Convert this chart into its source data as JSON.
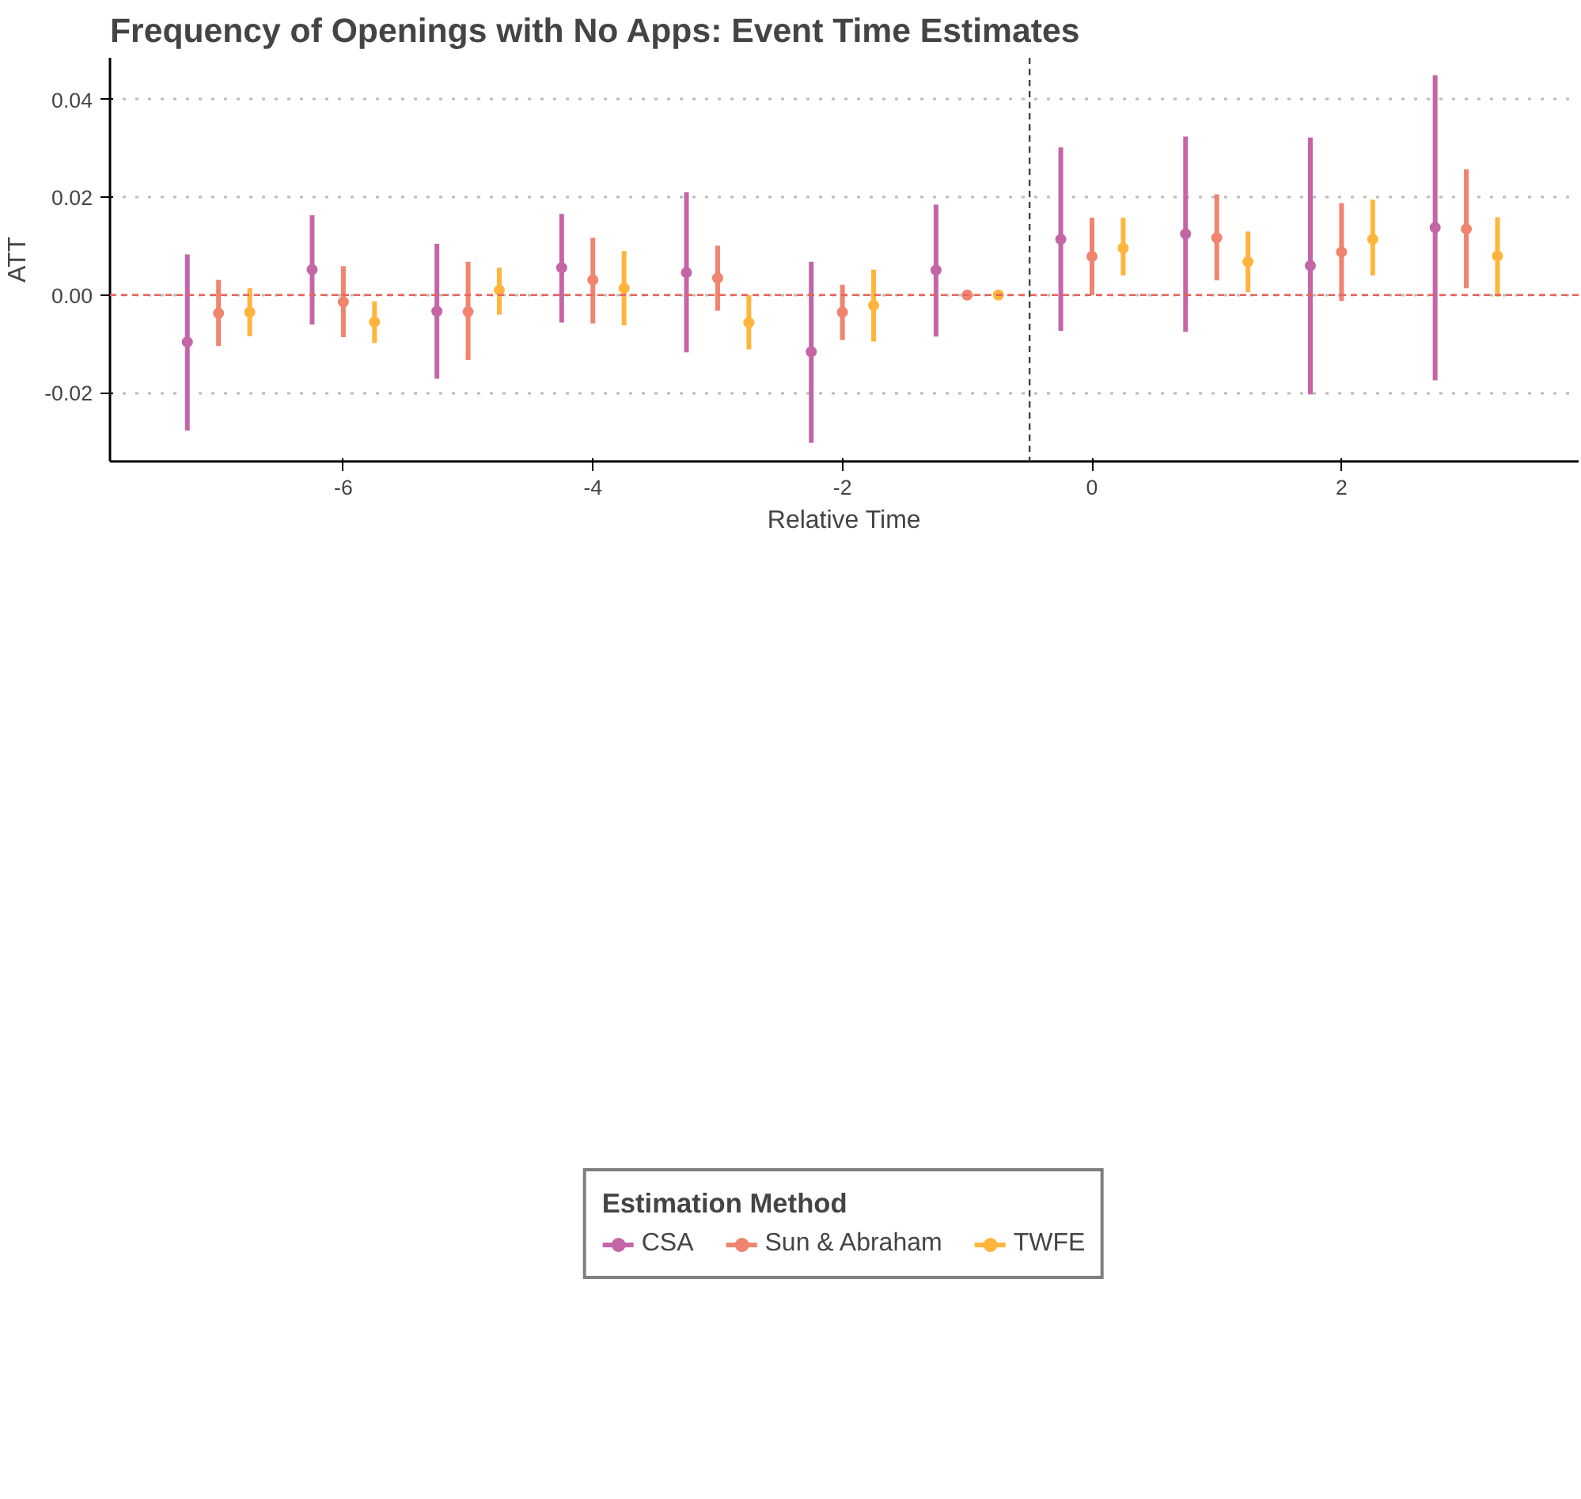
{
  "chart_data": {
    "type": "scatter",
    "title": "Frequency of Openings with No Apps: Event Time Estimates",
    "xlabel": "Relative Time",
    "ylabel": "ATT",
    "legend_title": "Estimation Method",
    "xlim": [
      -7.87,
      3.9
    ],
    "ylim": [
      -0.034,
      0.0485
    ],
    "xticks": [
      -6,
      -4,
      -2,
      0,
      2
    ],
    "yticks": [
      {
        "value": -0.02,
        "label": "-0.02"
      },
      {
        "value": 0,
        "label": "0.00"
      },
      {
        "value": 0.02,
        "label": "0.02"
      },
      {
        "value": 0.04,
        "label": "0.04"
      }
    ],
    "grid": "y",
    "legend": "bottom",
    "marker": "circle",
    "ref_lines": [
      {
        "axis": "y",
        "value": 0,
        "color": "#e8625a",
        "line_style": "dashed"
      },
      {
        "axis": "x",
        "value": -0.5,
        "color": "#444444",
        "line_style": "dashed"
      }
    ],
    "series": [
      {
        "name": "CSA",
        "color": "#c466a6",
        "x": [
          -7.25,
          -6.25,
          -5.25,
          -4.25,
          -3.25,
          -2.25,
          -1.25,
          -0.25,
          0.75,
          1.75,
          2.75
        ],
        "values": [
          -0.0096,
          0.0052,
          -0.0033,
          0.0056,
          0.0046,
          -0.0116,
          0.0051,
          0.0114,
          0.0125,
          0.006,
          0.0138
        ],
        "errors": [
          [
            -0.0277,
            0.0083
          ],
          [
            -0.006,
            0.0163
          ],
          [
            -0.0171,
            0.0105
          ],
          [
            -0.0056,
            0.0166
          ],
          [
            -0.0117,
            0.021
          ],
          [
            -0.0302,
            0.0068
          ],
          [
            -0.0085,
            0.0185
          ],
          [
            -0.0073,
            0.0302
          ],
          [
            -0.0075,
            0.0324
          ],
          [
            -0.0203,
            0.0322
          ],
          [
            -0.0174,
            0.0449
          ]
        ]
      },
      {
        "name": "Sun & Abraham",
        "color": "#f0846f",
        "x": [
          -7,
          -6,
          -5,
          -4,
          -3,
          -2,
          -1,
          0,
          1,
          2,
          3
        ],
        "values": [
          -0.0037,
          -0.0014,
          -0.0034,
          0.0031,
          0.0035,
          -0.0035,
          0.0,
          0.0079,
          0.0117,
          0.0088,
          0.0135
        ],
        "errors": [
          [
            -0.0104,
            0.0031
          ],
          [
            -0.0086,
            0.0059
          ],
          [
            -0.0133,
            0.0068
          ],
          [
            -0.0058,
            0.0117
          ],
          [
            -0.0032,
            0.0101
          ],
          [
            -0.0092,
            0.0021
          ],
          null,
          [
            0.0,
            0.0158
          ],
          [
            0.003,
            0.0206
          ],
          [
            -0.0012,
            0.0188
          ],
          [
            0.0014,
            0.0257
          ]
        ]
      },
      {
        "name": "TWFE",
        "color": "#ffb53c",
        "x": [
          -6.75,
          -5.75,
          -4.75,
          -3.75,
          -2.75,
          -1.75,
          -0.75,
          0.25,
          1.25,
          2.25,
          3.25
        ],
        "values": [
          -0.0035,
          -0.0055,
          0.001,
          0.0014,
          -0.0056,
          -0.0021,
          0.0,
          0.0096,
          0.0068,
          0.0114,
          0.008
        ],
        "errors": [
          [
            -0.0084,
            0.0014
          ],
          [
            -0.0098,
            -0.0013
          ],
          [
            -0.004,
            0.0056
          ],
          [
            -0.0062,
            0.009
          ],
          [
            -0.0111,
            0.0
          ],
          [
            -0.0095,
            0.0052
          ],
          null,
          [
            0.004,
            0.0158
          ],
          [
            0.0006,
            0.013
          ],
          [
            0.004,
            0.0195
          ],
          [
            -0.0003,
            0.0159
          ]
        ]
      }
    ]
  }
}
